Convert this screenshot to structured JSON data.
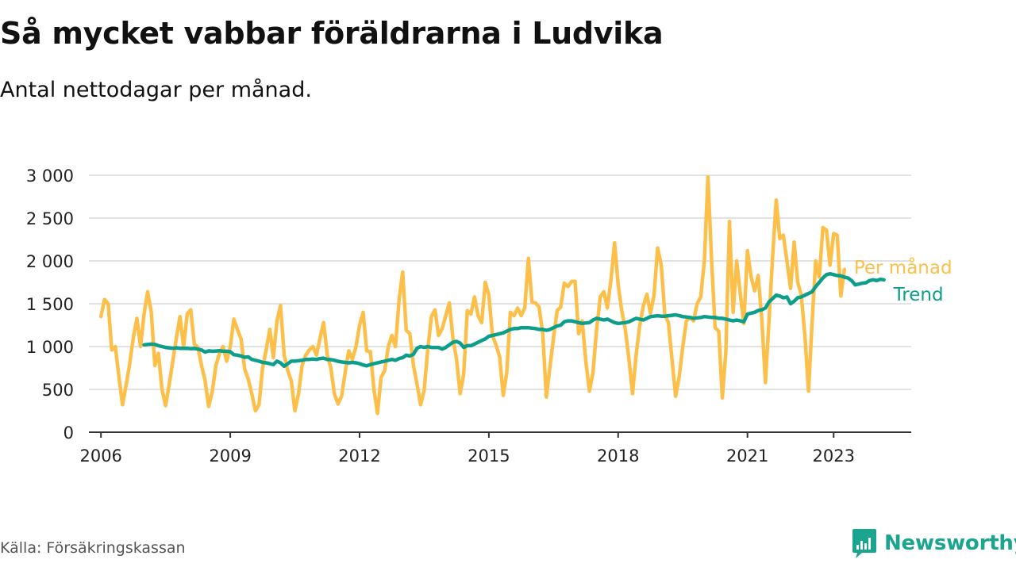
{
  "title": "Så mycket vabbar föräldrarna i Ludvika",
  "subtitle": "Antal nettodagar per månad.",
  "source": "Källa: Försäkringskassan",
  "brand": {
    "name": "Newsworthy",
    "icon": "newsworthy-logo-icon",
    "color": "#1aa58f"
  },
  "chart_data": {
    "type": "line",
    "title": "Så mycket vabbar föräldrarna i Ludvika",
    "subtitle": "Antal nettodagar per månad.",
    "xlabel": "",
    "ylabel": "",
    "ylim": [
      0,
      3000
    ],
    "yticks": [
      0,
      500,
      1000,
      1500,
      2000,
      2500,
      3000
    ],
    "ytick_labels": [
      "0",
      "500",
      "1 000",
      "1 500",
      "2 000",
      "2 500",
      "3 000"
    ],
    "xticks": [
      2006,
      2009,
      2012,
      2015,
      2018,
      2021,
      2023
    ],
    "xtick_labels": [
      "2006",
      "2009",
      "2012",
      "2015",
      "2018",
      "2021",
      "2023"
    ],
    "grid": "horizontal",
    "legend": "inline labels at right end of lines",
    "series": [
      {
        "name": "Per månad",
        "color": "#fcc04a",
        "start": "2006-01",
        "values": [
          1350,
          1550,
          1500,
          960,
          1000,
          650,
          320,
          550,
          800,
          1100,
          1330,
          1000,
          1380,
          1640,
          1400,
          780,
          920,
          500,
          310,
          560,
          830,
          1100,
          1350,
          1000,
          1380,
          1430,
          1030,
          990,
          780,
          600,
          300,
          480,
          780,
          920,
          1000,
          830,
          1000,
          1320,
          1200,
          1090,
          740,
          620,
          450,
          250,
          320,
          750,
          960,
          1200,
          870,
          1300,
          1480,
          900,
          720,
          600,
          250,
          450,
          780,
          900,
          960,
          1000,
          900,
          1100,
          1280,
          900,
          750,
          450,
          330,
          420,
          700,
          950,
          850,
          1000,
          1250,
          1400,
          950,
          940,
          500,
          220,
          640,
          720,
          1000,
          1130,
          1000,
          1550,
          1870,
          1190,
          1150,
          780,
          560,
          320,
          490,
          980,
          1350,
          1430,
          1130,
          1210,
          1360,
          1510,
          1100,
          850,
          450,
          680,
          1420,
          1380,
          1580,
          1360,
          1280,
          1750,
          1600,
          1130,
          1020,
          880,
          430,
          700,
          1400,
          1360,
          1450,
          1360,
          1450,
          2030,
          1520,
          1510,
          1460,
          1150,
          410,
          760,
          1100,
          1420,
          1460,
          1740,
          1700,
          1760,
          1760,
          1150,
          1300,
          820,
          480,
          700,
          1200,
          1580,
          1640,
          1450,
          1780,
          2210,
          1720,
          1420,
          1200,
          850,
          450,
          900,
          1240,
          1470,
          1610,
          1390,
          1600,
          2150,
          1950,
          1370,
          1280,
          850,
          420,
          650,
          1000,
          1300,
          1340,
          1300,
          1500,
          1580,
          2000,
          2980,
          2030,
          1220,
          1180,
          400,
          950,
          2460,
          1400,
          2000,
          1620,
          1270,
          2120,
          1820,
          1650,
          1830,
          1310,
          580,
          1300,
          2040,
          2710,
          2260,
          2300,
          2000,
          1680,
          2220,
          1750,
          1600,
          1120,
          480,
          1280,
          2000,
          1810,
          2390,
          2360,
          1950,
          2320,
          2300,
          1590,
          1900
        ]
      },
      {
        "name": "Trend",
        "color": "#0d9e8b",
        "start": "2007-01",
        "values": [
          1020,
          1025,
          1030,
          1025,
          1010,
          1000,
          990,
          985,
          980,
          985,
          980,
          980,
          980,
          975,
          978,
          970,
          960,
          935,
          950,
          945,
          948,
          952,
          945,
          945,
          940,
          905,
          900,
          890,
          875,
          880,
          850,
          840,
          830,
          815,
          810,
          800,
          790,
          830,
          810,
          770,
          800,
          830,
          830,
          835,
          840,
          850,
          850,
          855,
          850,
          860,
          865,
          850,
          848,
          840,
          828,
          820,
          815,
          810,
          815,
          810,
          800,
          785,
          775,
          790,
          800,
          810,
          820,
          830,
          840,
          850,
          840,
          860,
          870,
          900,
          890,
          910,
          980,
          1000,
          990,
          1000,
          990,
          990,
          990,
          970,
          990,
          1020,
          1050,
          1060,
          1040,
          990,
          1010,
          1010,
          1030,
          1050,
          1070,
          1090,
          1120,
          1130,
          1140,
          1150,
          1160,
          1180,
          1200,
          1210,
          1210,
          1220,
          1220,
          1220,
          1215,
          1210,
          1200,
          1200,
          1190,
          1200,
          1220,
          1240,
          1250,
          1290,
          1300,
          1300,
          1290,
          1280,
          1270,
          1275,
          1280,
          1310,
          1330,
          1320,
          1310,
          1320,
          1300,
          1280,
          1270,
          1275,
          1280,
          1290,
          1310,
          1330,
          1320,
          1310,
          1330,
          1350,
          1355,
          1360,
          1355,
          1355,
          1360,
          1365,
          1370,
          1360,
          1350,
          1345,
          1340,
          1330,
          1335,
          1340,
          1350,
          1345,
          1340,
          1340,
          1330,
          1330,
          1320,
          1310,
          1300,
          1310,
          1300,
          1290,
          1380,
          1390,
          1400,
          1420,
          1430,
          1450,
          1520,
          1560,
          1600,
          1590,
          1570,
          1580,
          1500,
          1530,
          1570,
          1580,
          1600,
          1620,
          1640,
          1700,
          1750,
          1800,
          1840,
          1850,
          1840,
          1830,
          1825,
          1810,
          1800,
          1770,
          1720,
          1730,
          1740,
          1745,
          1770,
          1780,
          1770,
          1785,
          1780
        ]
      }
    ]
  }
}
